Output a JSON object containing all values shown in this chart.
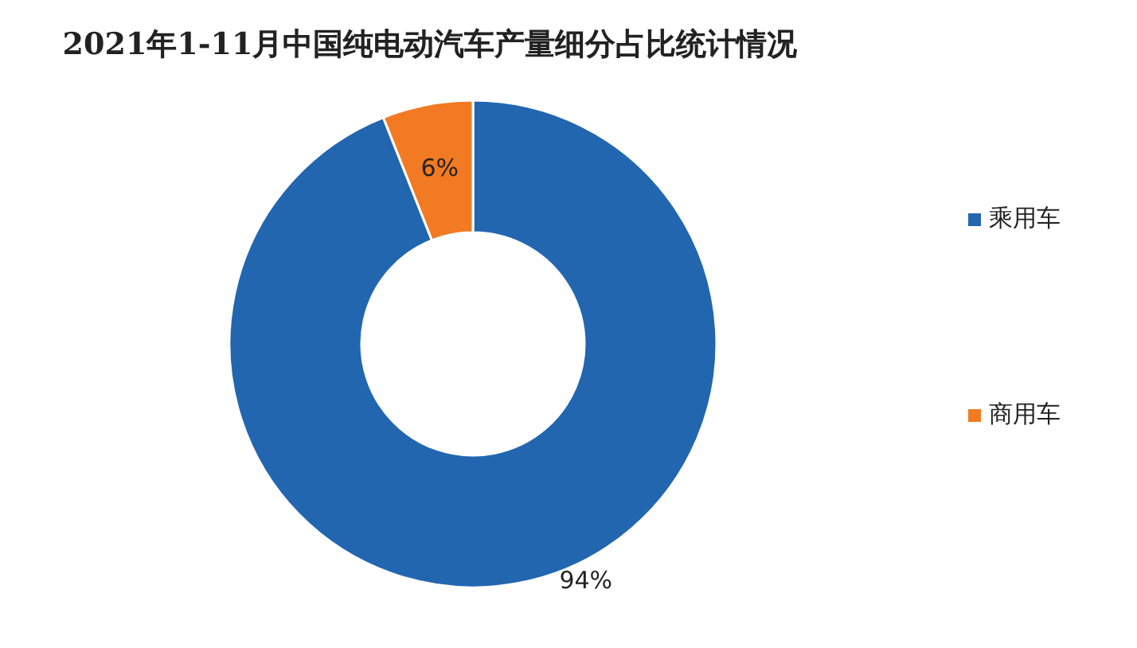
{
  "chart_data": {
    "type": "donut",
    "title": "2021年1-11月中国纯电动汽车产量细分占比统计情况",
    "categories": [
      "乘用车",
      "商用车"
    ],
    "values": [
      94,
      6
    ],
    "colors": [
      "#2266b0",
      "#f27a22"
    ],
    "value_labels": [
      "94%",
      "6%"
    ],
    "legend": "right"
  }
}
